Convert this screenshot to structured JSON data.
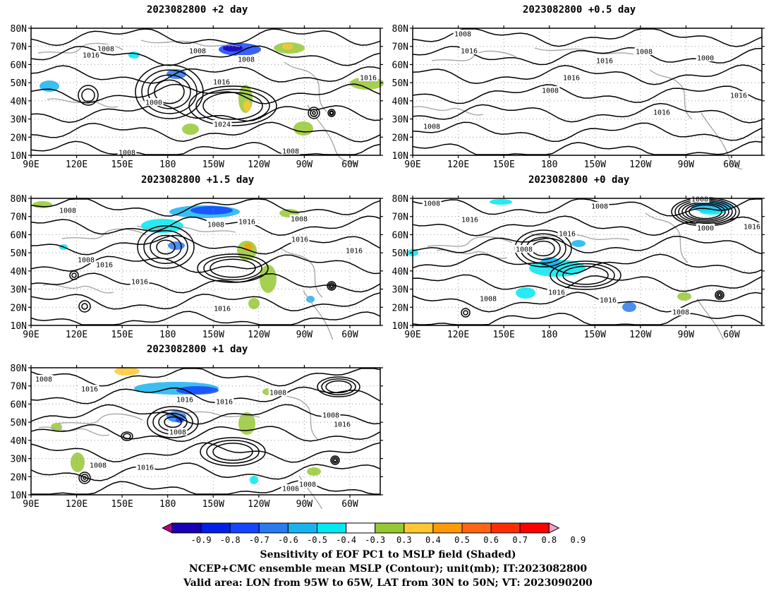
{
  "panels": [
    {
      "title": "2023082800 +2 day"
    },
    {
      "title": "2023082800 +0.5 day"
    },
    {
      "title": "2023082800 +1.5 day"
    },
    {
      "title": "2023082800 +0 day"
    },
    {
      "title": "2023082800 +1 day"
    }
  ],
  "lat_ticks": [
    "80N",
    "70N",
    "60N",
    "50N",
    "40N",
    "30N",
    "20N",
    "10N"
  ],
  "lon_ticks": [
    "90E",
    "120E",
    "150E",
    "180",
    "150W",
    "120W",
    "90W",
    "60W"
  ],
  "contour_labels": [
    "1000",
    "1008",
    "1016",
    "1024"
  ],
  "colorbar": {
    "labels": [
      "-0.9",
      "-0.8",
      "-0.7",
      "-0.6",
      "-0.5",
      "-0.4",
      "-0.3",
      "0.3",
      "0.4",
      "0.5",
      "0.6",
      "0.7",
      "0.8",
      "0.9"
    ],
    "colors": [
      "#b4008c",
      "#1a00b4",
      "#0020e8",
      "#1444ff",
      "#2a7af0",
      "#18b4f0",
      "#00e8f0",
      "#ffffff",
      "#96c832",
      "#ffc832",
      "#ff9b00",
      "#ff6414",
      "#ff2d00",
      "#ff0000",
      "#ffa0c8"
    ]
  },
  "footer": {
    "line1": "Sensitivity of EOF PC1 to MSLP field (Shaded)",
    "line2": "NCEP+CMC ensemble mean MSLP (Contour); unit(mb); IT:2023082800",
    "line3": "Valid area: LON from 95W to 65W, LAT from 30N to 50N; VT: 2023090200"
  }
}
